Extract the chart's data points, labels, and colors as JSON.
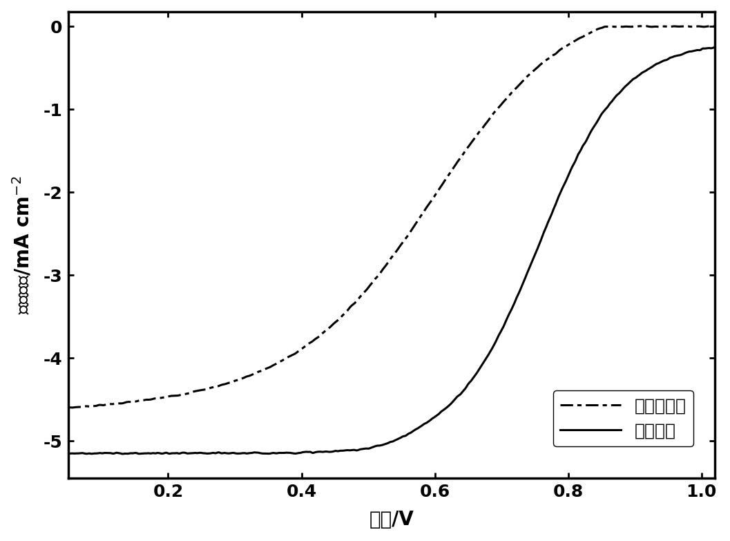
{
  "xlabel": "电位/V",
  "ylabel_chinese": "电流密度/mA cm",
  "ylabel_superscript": "-2",
  "xlim": [
    0.05,
    1.02
  ],
  "ylim": [
    -5.45,
    0.18
  ],
  "xticks": [
    0.2,
    0.4,
    0.6,
    0.8,
    1.0
  ],
  "yticks": [
    0,
    -1,
    -2,
    -3,
    -4,
    -5
  ],
  "legend_labels": [
    "单一软模板",
    "二元模板"
  ],
  "line_color": "#000000",
  "background_color": "#ffffff",
  "linewidth": 2.2,
  "legend_fontsize": 18,
  "axis_fontsize": 20,
  "tick_fontsize": 18
}
